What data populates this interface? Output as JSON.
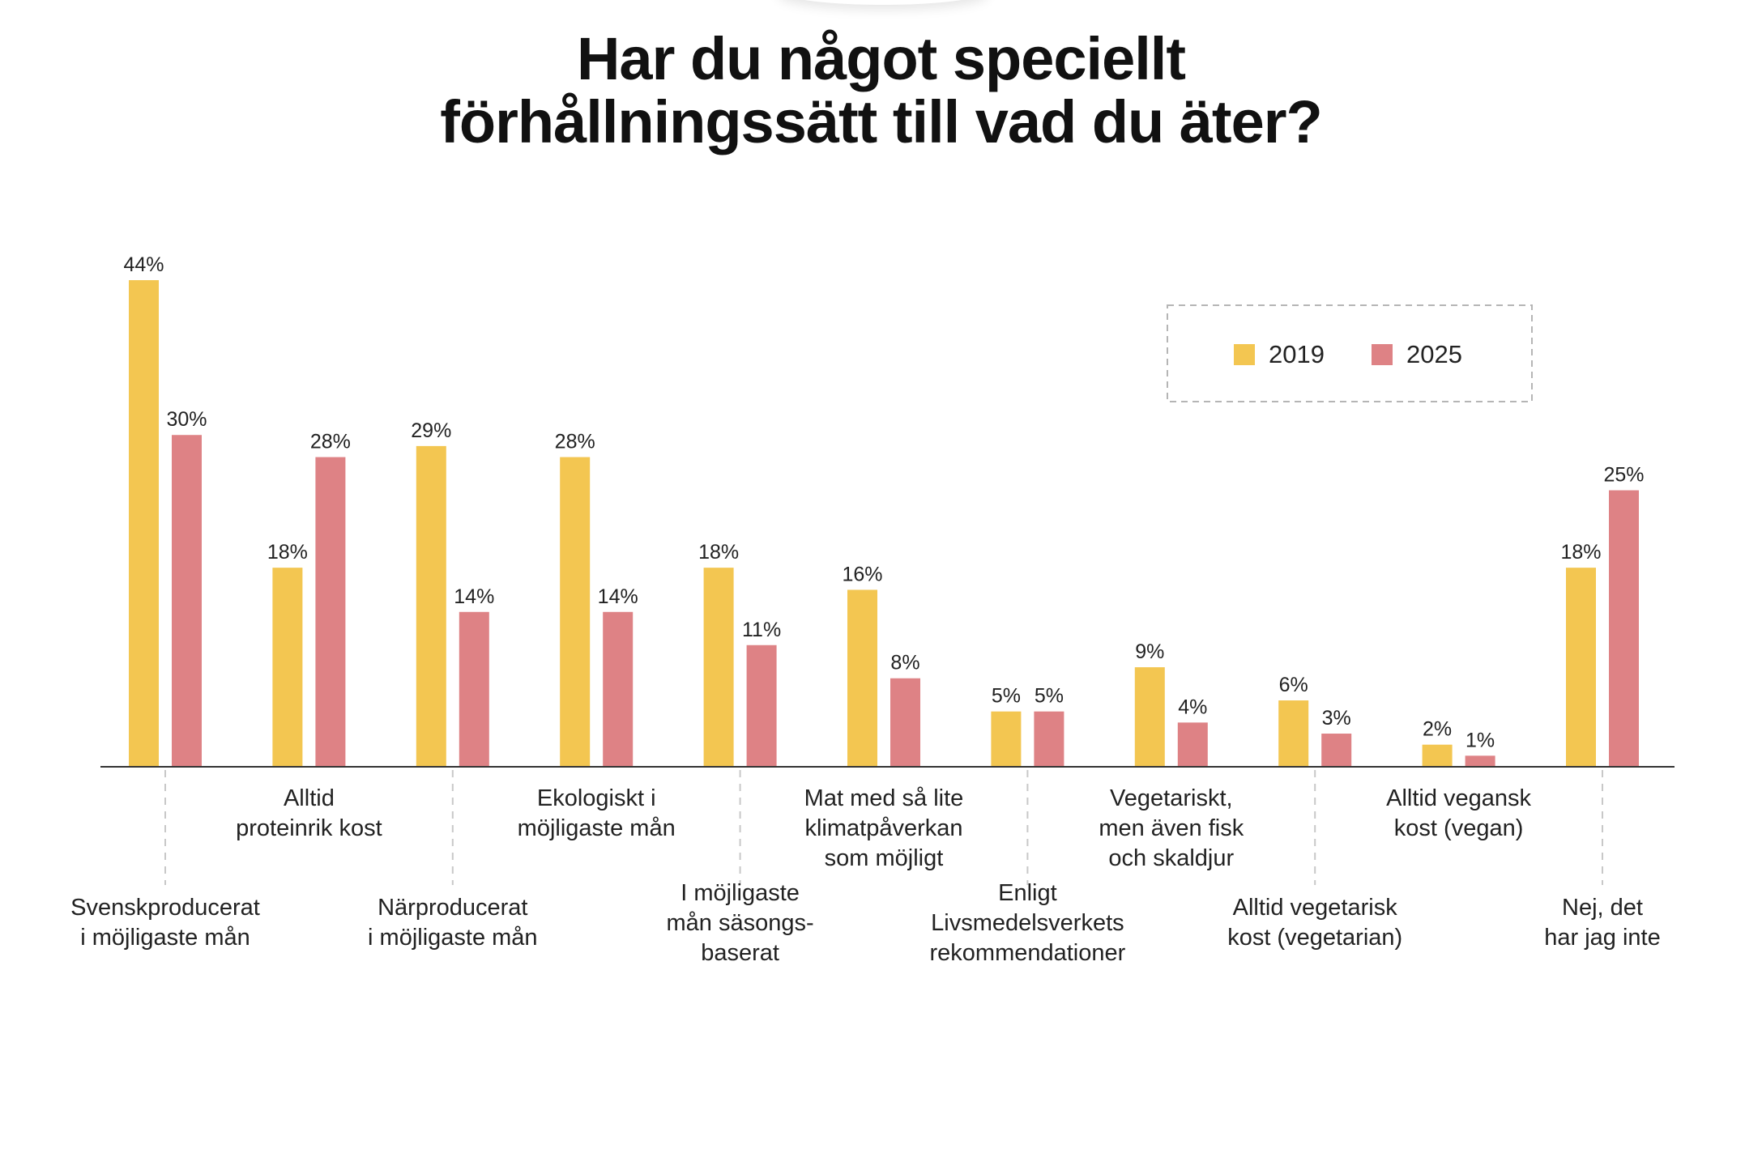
{
  "chart_data": {
    "type": "bar",
    "title": "Har du något speciellt förhållningssätt till vad du äter?",
    "title_lines": [
      "Har du något speciellt",
      "förhållningssätt till vad du äter?"
    ],
    "xlabel": "",
    "ylabel": "",
    "ylim": [
      0,
      44
    ],
    "grid": false,
    "legend_position": "top-right",
    "value_suffix": "%",
    "categories": [
      {
        "name": "Svenskproducerat i möjligaste mån",
        "lines": [
          "Svenskproducerat",
          "i möjligaste mån"
        ],
        "row": "lower"
      },
      {
        "name": "Alltid proteinrik kost",
        "lines": [
          "Alltid",
          "proteinrik kost"
        ],
        "row": "upper"
      },
      {
        "name": "Närproducerat i möjligaste mån",
        "lines": [
          "Närproducerat",
          "i möjligaste mån"
        ],
        "row": "lower"
      },
      {
        "name": "Ekologiskt i möjligaste mån",
        "lines": [
          "Ekologiskt i",
          "möjligaste mån"
        ],
        "row": "upper"
      },
      {
        "name": "I möjligaste mån säsongs-baserat",
        "lines": [
          "I möjligaste",
          "mån säsongs-",
          "baserat"
        ],
        "row": "lower"
      },
      {
        "name": "Mat med så lite klimatpåverkan som möjligt",
        "lines": [
          "Mat med så lite",
          "klimatpåverkan",
          "som möjligt"
        ],
        "row": "upper"
      },
      {
        "name": "Enligt Livsmedelsverkets rekommendationer",
        "lines": [
          "Enligt",
          "Livsmedelsverkets",
          "rekommendationer"
        ],
        "row": "lower"
      },
      {
        "name": "Vegetariskt, men även fisk och skaldjur",
        "lines": [
          "Vegetariskt,",
          "men även fisk",
          "och skaldjur"
        ],
        "row": "upper"
      },
      {
        "name": "Alltid vegetarisk kost (vegetarian)",
        "lines": [
          "Alltid vegetarisk",
          "kost (vegetarian)"
        ],
        "row": "lower"
      },
      {
        "name": "Alltid vegansk kost (vegan)",
        "lines": [
          "Alltid vegansk",
          "kost (vegan)"
        ],
        "row": "upper"
      },
      {
        "name": "Nej, det har jag inte",
        "lines": [
          "Nej, det",
          "har jag inte"
        ],
        "row": "lower"
      }
    ],
    "series": [
      {
        "name": "2019",
        "color": "#F3C651",
        "values": [
          44,
          18,
          29,
          28,
          18,
          16,
          5,
          9,
          6,
          2,
          18
        ]
      },
      {
        "name": "2025",
        "color": "#DE8285",
        "values": [
          30,
          28,
          14,
          14,
          11,
          8,
          5,
          4,
          3,
          1,
          25
        ]
      }
    ]
  }
}
